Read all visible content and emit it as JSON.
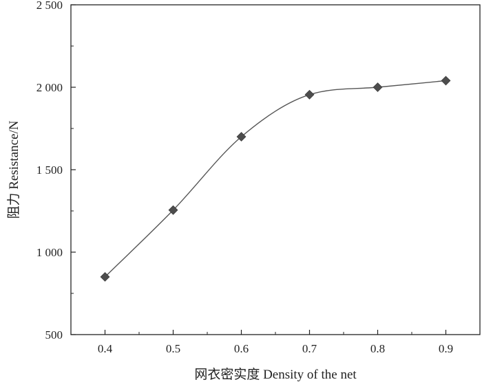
{
  "chart_data": {
    "type": "line",
    "xlabel": "网衣密实度 Density of the net",
    "ylabel": "阻力 Resistance/N",
    "x": [
      0.4,
      0.5,
      0.6,
      0.7,
      0.8,
      0.9
    ],
    "series": [
      {
        "values": [
          850,
          1255,
          1700,
          1955,
          2000,
          2040
        ]
      }
    ],
    "xlim": [
      0.35,
      0.95
    ],
    "ylim": [
      500,
      2500
    ],
    "x_ticks": [
      0.4,
      0.5,
      0.6,
      0.7,
      0.8,
      0.9
    ],
    "x_tick_labels": [
      "0.4",
      "0.5",
      "0.6",
      "0.7",
      "0.8",
      "0.9"
    ],
    "y_ticks": [
      500,
      1000,
      1500,
      2000,
      2500
    ],
    "y_tick_labels": [
      "500",
      "1 000",
      "1 500",
      "2 000",
      "2 500"
    ],
    "grid": false,
    "marker": "diamond",
    "line_style": "smooth",
    "colors": {
      "line": "#555555",
      "marker": "#4d4d4d",
      "axis": "#222222"
    }
  }
}
